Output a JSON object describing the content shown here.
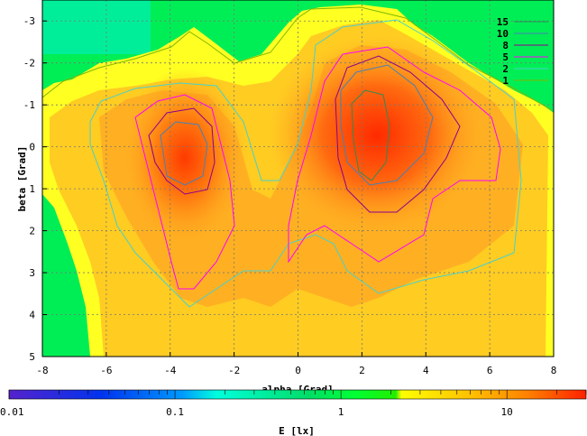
{
  "chart_data": {
    "type": "heatmap",
    "title": "",
    "xlabel": "alpha [Grad]",
    "ylabel": "beta [Grad]",
    "xlim": [
      -8,
      8
    ],
    "ylim": [
      5,
      -3.5
    ],
    "x_ticks": [
      "-8",
      "-6",
      "-4",
      "-2",
      "0",
      "2",
      "4",
      "6",
      "8"
    ],
    "y_ticks": [
      "-3",
      "-2",
      "-1",
      "0",
      "1",
      "2",
      "3",
      "4",
      "5"
    ],
    "grid": true,
    "colorbar": {
      "label": "E [lx]",
      "scale": "log",
      "range": [
        0.01,
        30
      ],
      "ticks": [
        "0.01",
        "0.1",
        "1",
        "10"
      ]
    },
    "contour_levels": [
      {
        "label": "15",
        "color": "#2e8b57"
      },
      {
        "label": "10",
        "color": "#4682b4"
      },
      {
        "label": "8",
        "color": "#8b008b"
      },
      {
        "label": "5",
        "color": "#ff00ff"
      },
      {
        "label": "2",
        "color": "#48d1cc"
      },
      {
        "label": "1",
        "color": "#7fb800"
      }
    ],
    "peaks": [
      {
        "alpha": -3.6,
        "beta": 0.3,
        "value": 15
      },
      {
        "alpha": 2.4,
        "beta": -0.2,
        "value": 18
      }
    ],
    "colors": {
      "background": "#00ee55",
      "low": "#ffff00",
      "high": "#ff3000"
    }
  }
}
